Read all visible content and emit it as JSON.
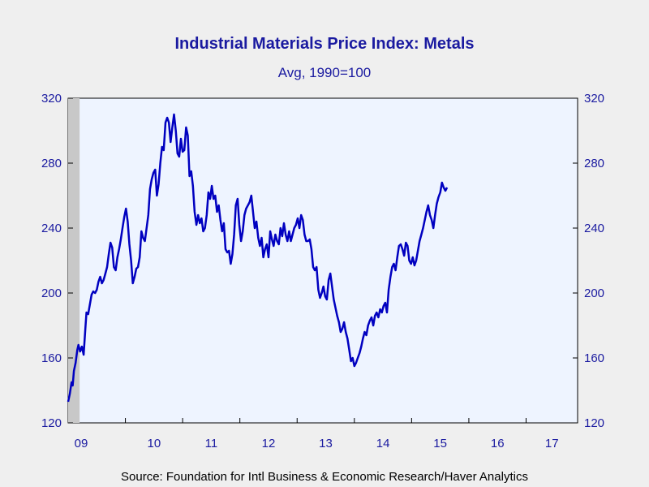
{
  "chart_data": {
    "type": "line",
    "title": "Industrial Materials Price Index: Metals",
    "subtitle": "Avg, 1990=100",
    "source": "Source:  Foundation for Intl Business & Economic Research/Haver Analytics",
    "ylim": [
      120,
      320
    ],
    "yticks": [
      "120",
      "160",
      "200",
      "240",
      "280",
      "320"
    ],
    "xlim": [
      2009.0,
      2017.9
    ],
    "xtick_labels": [
      {
        "label": "09",
        "year": 2009
      },
      {
        "label": "10",
        "year": 2010
      },
      {
        "label": "11",
        "year": 2011
      },
      {
        "label": "12",
        "year": 2012
      },
      {
        "label": "13",
        "year": 2013
      },
      {
        "label": "14",
        "year": 2014
      },
      {
        "label": "15",
        "year": 2015
      },
      {
        "label": "16",
        "year": 2016
      },
      {
        "label": "17",
        "year": 2017
      }
    ],
    "recession_shading": {
      "start": 2009.0,
      "end": 2009.2,
      "color": "#c8c8c8"
    },
    "plot_background": "#eef4ff",
    "line_color": "#0000c0",
    "series": [
      {
        "points": [
          [
            2009.0,
            133
          ],
          [
            2009.03,
            138
          ],
          [
            2009.06,
            145
          ],
          [
            2009.08,
            143
          ],
          [
            2009.1,
            152
          ],
          [
            2009.13,
            157
          ],
          [
            2009.16,
            165
          ],
          [
            2009.18,
            168
          ],
          [
            2009.21,
            164
          ],
          [
            2009.24,
            167
          ],
          [
            2009.27,
            162
          ],
          [
            2009.3,
            178
          ],
          [
            2009.32,
            188
          ],
          [
            2009.35,
            187
          ],
          [
            2009.38,
            193
          ],
          [
            2009.41,
            199
          ],
          [
            2009.44,
            201
          ],
          [
            2009.47,
            200
          ],
          [
            2009.5,
            202
          ],
          [
            2009.53,
            207
          ],
          [
            2009.56,
            210
          ],
          [
            2009.59,
            206
          ],
          [
            2009.62,
            208
          ],
          [
            2009.65,
            212
          ],
          [
            2009.68,
            216
          ],
          [
            2009.71,
            224
          ],
          [
            2009.74,
            231
          ],
          [
            2009.77,
            228
          ],
          [
            2009.8,
            216
          ],
          [
            2009.83,
            214
          ],
          [
            2009.86,
            222
          ],
          [
            2009.89,
            227
          ],
          [
            2009.92,
            233
          ],
          [
            2009.95,
            240
          ],
          [
            2009.98,
            247
          ],
          [
            2010.01,
            252
          ],
          [
            2010.04,
            244
          ],
          [
            2010.07,
            230
          ],
          [
            2010.1,
            220
          ],
          [
            2010.13,
            206
          ],
          [
            2010.16,
            210
          ],
          [
            2010.19,
            215
          ],
          [
            2010.22,
            216
          ],
          [
            2010.25,
            222
          ],
          [
            2010.28,
            238
          ],
          [
            2010.31,
            234
          ],
          [
            2010.34,
            232
          ],
          [
            2010.37,
            240
          ],
          [
            2010.4,
            248
          ],
          [
            2010.43,
            264
          ],
          [
            2010.46,
            270
          ],
          [
            2010.49,
            274
          ],
          [
            2010.52,
            276
          ],
          [
            2010.55,
            260
          ],
          [
            2010.58,
            267
          ],
          [
            2010.61,
            280
          ],
          [
            2010.64,
            290
          ],
          [
            2010.67,
            288
          ],
          [
            2010.7,
            305
          ],
          [
            2010.73,
            308
          ],
          [
            2010.76,
            305
          ],
          [
            2010.79,
            293
          ],
          [
            2010.82,
            302
          ],
          [
            2010.85,
            310
          ],
          [
            2010.88,
            300
          ],
          [
            2010.91,
            286
          ],
          [
            2010.94,
            284
          ],
          [
            2010.97,
            295
          ],
          [
            2011.0,
            287
          ],
          [
            2011.03,
            288
          ],
          [
            2011.06,
            302
          ],
          [
            2011.09,
            297
          ],
          [
            2011.12,
            272
          ],
          [
            2011.15,
            275
          ],
          [
            2011.18,
            266
          ],
          [
            2011.21,
            250
          ],
          [
            2011.24,
            242
          ],
          [
            2011.27,
            248
          ],
          [
            2011.3,
            243
          ],
          [
            2011.33,
            246
          ],
          [
            2011.36,
            238
          ],
          [
            2011.39,
            240
          ],
          [
            2011.42,
            248
          ],
          [
            2011.45,
            262
          ],
          [
            2011.48,
            258
          ],
          [
            2011.51,
            266
          ],
          [
            2011.54,
            258
          ],
          [
            2011.57,
            260
          ],
          [
            2011.6,
            250
          ],
          [
            2011.63,
            254
          ],
          [
            2011.66,
            245
          ],
          [
            2011.69,
            238
          ],
          [
            2011.72,
            243
          ],
          [
            2011.75,
            227
          ],
          [
            2011.78,
            225
          ],
          [
            2011.81,
            226
          ],
          [
            2011.84,
            218
          ],
          [
            2011.87,
            224
          ],
          [
            2011.9,
            236
          ],
          [
            2011.93,
            254
          ],
          [
            2011.96,
            258
          ],
          [
            2011.99,
            242
          ],
          [
            2012.02,
            232
          ],
          [
            2012.05,
            238
          ],
          [
            2012.08,
            248
          ],
          [
            2012.11,
            252
          ],
          [
            2012.14,
            254
          ],
          [
            2012.17,
            256
          ],
          [
            2012.2,
            260
          ],
          [
            2012.23,
            250
          ],
          [
            2012.26,
            240
          ],
          [
            2012.29,
            244
          ],
          [
            2012.32,
            234
          ],
          [
            2012.35,
            229
          ],
          [
            2012.38,
            234
          ],
          [
            2012.41,
            222
          ],
          [
            2012.44,
            227
          ],
          [
            2012.47,
            230
          ],
          [
            2012.5,
            222
          ],
          [
            2012.53,
            238
          ],
          [
            2012.56,
            233
          ],
          [
            2012.59,
            229
          ],
          [
            2012.62,
            236
          ],
          [
            2012.65,
            232
          ],
          [
            2012.68,
            230
          ],
          [
            2012.71,
            240
          ],
          [
            2012.74,
            235
          ],
          [
            2012.77,
            243
          ],
          [
            2012.8,
            236
          ],
          [
            2012.83,
            232
          ],
          [
            2012.86,
            238
          ],
          [
            2012.89,
            232
          ],
          [
            2012.92,
            236
          ],
          [
            2012.95,
            240
          ],
          [
            2012.98,
            242
          ],
          [
            2013.01,
            246
          ],
          [
            2013.04,
            240
          ],
          [
            2013.07,
            248
          ],
          [
            2013.1,
            245
          ],
          [
            2013.13,
            236
          ],
          [
            2013.16,
            232
          ],
          [
            2013.19,
            232
          ],
          [
            2013.22,
            233
          ],
          [
            2013.25,
            227
          ],
          [
            2013.28,
            216
          ],
          [
            2013.31,
            214
          ],
          [
            2013.34,
            216
          ],
          [
            2013.37,
            202
          ],
          [
            2013.4,
            197
          ],
          [
            2013.43,
            200
          ],
          [
            2013.46,
            204
          ],
          [
            2013.49,
            198
          ],
          [
            2013.52,
            196
          ],
          [
            2013.55,
            208
          ],
          [
            2013.58,
            212
          ],
          [
            2013.61,
            204
          ],
          [
            2013.64,
            196
          ],
          [
            2013.67,
            191
          ],
          [
            2013.7,
            186
          ],
          [
            2013.73,
            182
          ],
          [
            2013.76,
            176
          ],
          [
            2013.79,
            178
          ],
          [
            2013.82,
            182
          ],
          [
            2013.85,
            176
          ],
          [
            2013.88,
            172
          ],
          [
            2013.91,
            165
          ],
          [
            2013.94,
            158
          ],
          [
            2013.97,
            160
          ],
          [
            2014.0,
            155
          ],
          [
            2014.03,
            157
          ],
          [
            2014.06,
            160
          ],
          [
            2014.09,
            163
          ],
          [
            2014.12,
            167
          ],
          [
            2014.15,
            172
          ],
          [
            2014.18,
            176
          ],
          [
            2014.21,
            174
          ],
          [
            2014.24,
            180
          ],
          [
            2014.27,
            183
          ],
          [
            2014.3,
            185
          ],
          [
            2014.33,
            180
          ],
          [
            2014.36,
            186
          ],
          [
            2014.39,
            188
          ],
          [
            2014.42,
            185
          ],
          [
            2014.45,
            190
          ],
          [
            2014.48,
            188
          ],
          [
            2014.51,
            192
          ],
          [
            2014.54,
            194
          ],
          [
            2014.57,
            188
          ],
          [
            2014.6,
            202
          ],
          [
            2014.63,
            210
          ],
          [
            2014.66,
            216
          ],
          [
            2014.69,
            218
          ],
          [
            2014.72,
            214
          ],
          [
            2014.75,
            222
          ],
          [
            2014.78,
            229
          ],
          [
            2014.81,
            230
          ],
          [
            2014.84,
            227
          ],
          [
            2014.87,
            223
          ],
          [
            2014.9,
            231
          ],
          [
            2014.93,
            229
          ],
          [
            2014.96,
            220
          ],
          [
            2014.99,
            218
          ],
          [
            2015.02,
            222
          ],
          [
            2015.05,
            217
          ],
          [
            2015.08,
            220
          ],
          [
            2015.11,
            226
          ],
          [
            2015.14,
            232
          ],
          [
            2015.17,
            236
          ],
          [
            2015.2,
            240
          ],
          [
            2015.23,
            245
          ],
          [
            2015.26,
            250
          ],
          [
            2015.29,
            254
          ],
          [
            2015.32,
            248
          ],
          [
            2015.35,
            245
          ],
          [
            2015.38,
            240
          ],
          [
            2015.41,
            248
          ],
          [
            2015.44,
            255
          ],
          [
            2015.47,
            259
          ],
          [
            2015.5,
            262
          ],
          [
            2015.53,
            268
          ],
          [
            2015.56,
            265
          ],
          [
            2015.59,
            263
          ],
          [
            2015.62,
            265
          ]
        ]
      }
    ]
  }
}
